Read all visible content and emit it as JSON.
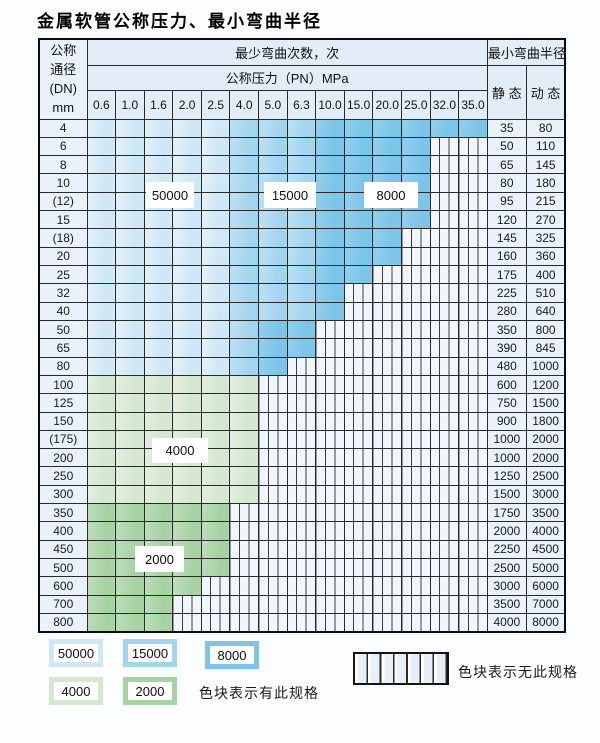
{
  "page": {
    "title": "金属软管公称压力、最小弯曲半径"
  },
  "table": {
    "corner": {
      "line1": "公称",
      "line2": "通径",
      "line3": "(DN)",
      "line4": "mm"
    },
    "bend_cycles_header": "最少弯曲次数，次",
    "pressure_header": "公称压力（PN）MPa",
    "radius_header": "最小弯曲半径",
    "static_header": "静 态",
    "dynamic_header": "动 态",
    "pressures": [
      "0.6",
      "1.0",
      "1.6",
      "2.0",
      "2.5",
      "4.0",
      "5.0",
      "6.3",
      "10.0",
      "15.0",
      "20.0",
      "25.0",
      "32.0",
      "35.0"
    ],
    "rows": [
      {
        "dn": "4",
        "s": "35",
        "d": "80",
        "band": "blue",
        "end": 14
      },
      {
        "dn": "6",
        "s": "50",
        "d": "110",
        "band": "blue",
        "end": 12
      },
      {
        "dn": "8",
        "s": "65",
        "d": "145",
        "band": "blue",
        "end": 12
      },
      {
        "dn": "10",
        "s": "80",
        "d": "180",
        "band": "blue",
        "end": 12
      },
      {
        "dn": "(12)",
        "s": "95",
        "d": "215",
        "band": "blue",
        "end": 12
      },
      {
        "dn": "15",
        "s": "120",
        "d": "270",
        "band": "blue",
        "end": 12
      },
      {
        "dn": "(18)",
        "s": "145",
        "d": "325",
        "band": "blue",
        "end": 11
      },
      {
        "dn": "20",
        "s": "160",
        "d": "360",
        "band": "blue",
        "end": 11
      },
      {
        "dn": "25",
        "s": "175",
        "d": "400",
        "band": "blue",
        "end": 10
      },
      {
        "dn": "32",
        "s": "225",
        "d": "510",
        "band": "blue",
        "end": 9
      },
      {
        "dn": "40",
        "s": "280",
        "d": "640",
        "band": "blue",
        "end": 9
      },
      {
        "dn": "50",
        "s": "350",
        "d": "800",
        "band": "blue",
        "end": 8,
        "medTo": 6
      },
      {
        "dn": "65",
        "s": "390",
        "d": "845",
        "band": "blue",
        "end": 8,
        "medTo": 6
      },
      {
        "dn": "80",
        "s": "480",
        "d": "1000",
        "band": "blue",
        "end": 7,
        "medTo": 6
      },
      {
        "dn": "100",
        "s": "600",
        "d": "1200",
        "band": "green1",
        "end": 6
      },
      {
        "dn": "125",
        "s": "750",
        "d": "1500",
        "band": "green1",
        "end": 6
      },
      {
        "dn": "150",
        "s": "900",
        "d": "1800",
        "band": "green1",
        "end": 6
      },
      {
        "dn": "(175)",
        "s": "1000",
        "d": "2000",
        "band": "green1",
        "end": 6
      },
      {
        "dn": "200",
        "s": "1000",
        "d": "2000",
        "band": "green1",
        "end": 6
      },
      {
        "dn": "250",
        "s": "1250",
        "d": "2500",
        "band": "green1",
        "end": 6
      },
      {
        "dn": "300",
        "s": "1500",
        "d": "3000",
        "band": "green1",
        "end": 6
      },
      {
        "dn": "350",
        "s": "1750",
        "d": "3500",
        "band": "green2",
        "end": 5
      },
      {
        "dn": "400",
        "s": "2000",
        "d": "4000",
        "band": "green2",
        "end": 5
      },
      {
        "dn": "450",
        "s": "2250",
        "d": "4500",
        "band": "green2",
        "end": 5
      },
      {
        "dn": "500",
        "s": "2500",
        "d": "5000",
        "band": "green2",
        "end": 5
      },
      {
        "dn": "600",
        "s": "3000",
        "d": "6000",
        "band": "green2",
        "end": 4
      },
      {
        "dn": "700",
        "s": "3500",
        "d": "7000",
        "band": "green2",
        "end": 3
      },
      {
        "dn": "800",
        "s": "4000",
        "d": "8000",
        "band": "green2",
        "end": 3
      }
    ]
  },
  "overlays": {
    "v50000": "50000",
    "v15000": "15000",
    "v8000": "8000",
    "v4000": "4000",
    "v2000": "2000"
  },
  "colors": {
    "blue_50000": "#cfe7f6",
    "blue_15000": "#a3d5ef",
    "blue_8000": "#7cc5e9",
    "green_4000": "#d5e7d0",
    "green_2000": "#a7d3a4"
  },
  "legend": {
    "items": [
      {
        "label": "50000",
        "color": "#cfe7f6"
      },
      {
        "label": "15000",
        "color": "#a3d5ef"
      },
      {
        "label": "8000",
        "color": "#7cc5e9"
      },
      {
        "label": "4000",
        "color": "#d5e7d0"
      },
      {
        "label": "2000",
        "color": "#a7d3a4"
      }
    ],
    "has_spec_text": "色块表示有此规格",
    "no_spec_text": "色块表示无此规格"
  }
}
